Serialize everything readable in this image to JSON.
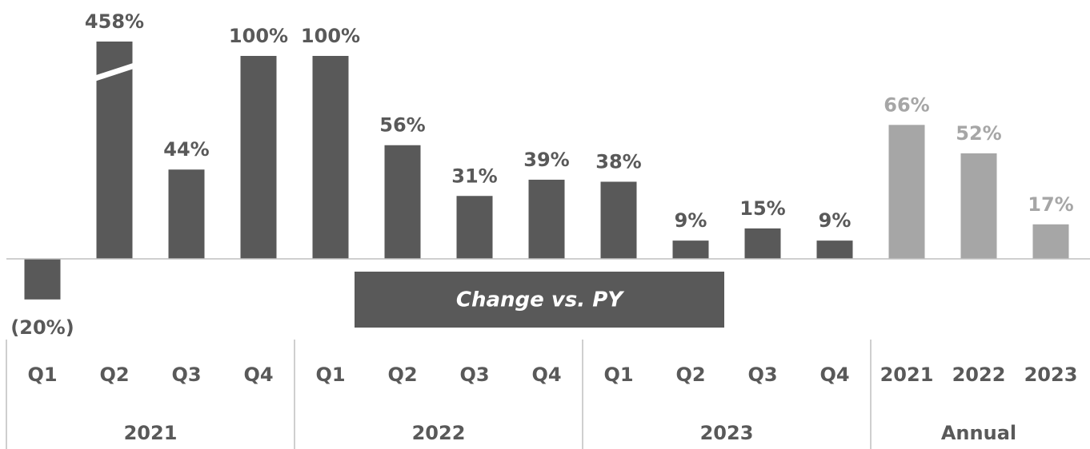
{
  "chart_data": {
    "type": "bar",
    "groups": [
      {
        "name": "2021",
        "categories": [
          "Q1",
          "Q2",
          "Q3",
          "Q4"
        ]
      },
      {
        "name": "2022",
        "categories": [
          "Q1",
          "Q2",
          "Q3",
          "Q4"
        ]
      },
      {
        "name": "2023",
        "categories": [
          "Q1",
          "Q2",
          "Q3",
          "Q4"
        ]
      },
      {
        "name": "Annual",
        "categories": [
          "2021",
          "2022",
          "2023"
        ]
      }
    ],
    "values": [
      -20,
      458,
      44,
      100,
      100,
      56,
      31,
      39,
      38,
      9,
      15,
      9,
      66,
      52,
      17
    ],
    "value_labels": [
      "(20%)",
      "458%",
      "44%",
      "100%",
      "100%",
      "56%",
      "31%",
      "39%",
      "38%",
      "9%",
      "15%",
      "9%",
      "66%",
      "52%",
      "17%"
    ],
    "colors": [
      "#595959",
      "#595959",
      "#595959",
      "#595959",
      "#595959",
      "#595959",
      "#595959",
      "#595959",
      "#595959",
      "#595959",
      "#595959",
      "#595959",
      "#a6a6a6",
      "#a6a6a6",
      "#a6a6a6"
    ],
    "ylim": [
      -25,
      107
    ],
    "annotation": "Change vs. PY"
  }
}
